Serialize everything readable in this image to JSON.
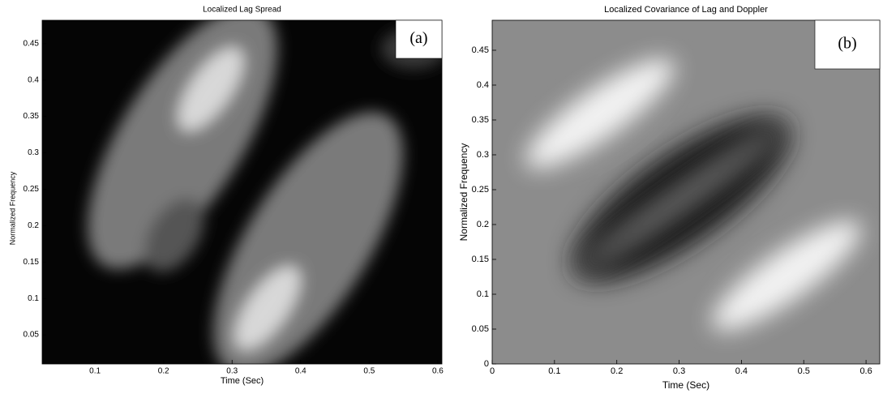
{
  "chart_data": [
    {
      "type": "image",
      "title": "Localized Lag Spread",
      "annotation": "(a)",
      "x_label": "Time (Sec)",
      "y_label": "Normalized Frequency",
      "xlim": [
        0.023,
        0.606
      ],
      "ylim": [
        0.01,
        0.482
      ],
      "xticks": [
        0.1,
        0.2,
        0.3,
        0.4,
        0.5,
        0.6
      ],
      "yticks": [
        0.05,
        0.1,
        0.15,
        0.2,
        0.25,
        0.3,
        0.35,
        0.4,
        0.45
      ]
    },
    {
      "type": "image",
      "title": "Localized Covariance of Lag and Doppler",
      "annotation": "(b)",
      "x_label": "Time (Sec)",
      "y_label": "Normalized Frequency",
      "xlim": [
        0,
        0.622
      ],
      "ylim": [
        0,
        0.493
      ],
      "xticks": [
        0,
        0.1,
        0.2,
        0.3,
        0.4,
        0.5,
        0.6
      ],
      "yticks": [
        0,
        0.05,
        0.1,
        0.15,
        0.2,
        0.25,
        0.3,
        0.35,
        0.4,
        0.45
      ]
    }
  ]
}
